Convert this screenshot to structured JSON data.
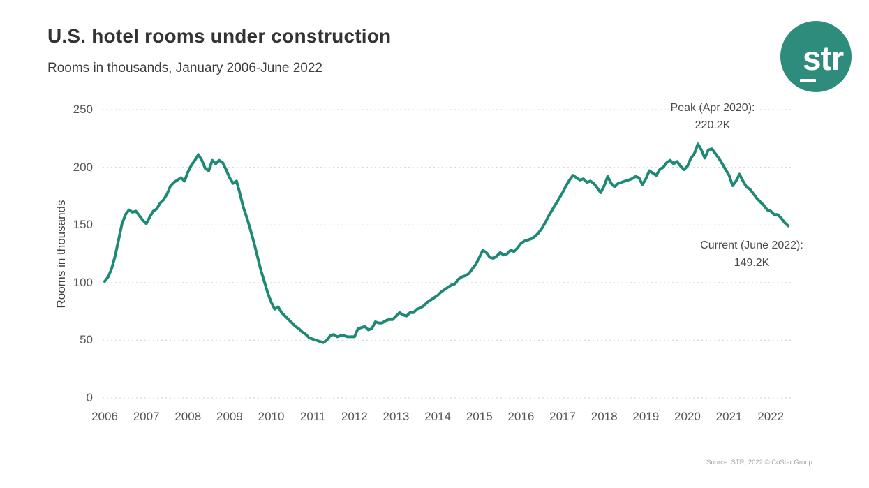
{
  "branding": {
    "logo_text": "str",
    "logo_color": "#2E8C7C"
  },
  "footer": {
    "source": "Source: STR, 2022 © CoStar Group"
  },
  "chart_data": {
    "type": "line",
    "title": "U.S. hotel rooms under construction",
    "subtitle": "Rooms in thousands, January 2006-June 2022",
    "ylabel": "Rooms in thousands",
    "xlabel": "",
    "x_start": "2006-01",
    "x_end": "2022-06",
    "x_frequency": "monthly",
    "x_tick_years": [
      "2006",
      "2007",
      "2008",
      "2009",
      "2010",
      "2011",
      "2012",
      "2013",
      "2014",
      "2015",
      "2016",
      "2017",
      "2018",
      "2019",
      "2020",
      "2021",
      "2022"
    ],
    "y_ticks": [
      0,
      50,
      100,
      150,
      200,
      250
    ],
    "ylim": [
      0,
      250
    ],
    "grid": "horizontal-dashed",
    "legend": "none",
    "line_color": "#1E8A76",
    "grid_color": "#dadada",
    "series": [
      {
        "name": "Rooms under construction (thousands)",
        "monthly_values": [
          101,
          105,
          112,
          123,
          137,
          151,
          159,
          163,
          161,
          162,
          158,
          154,
          151,
          157,
          162,
          164,
          169,
          172,
          177,
          184,
          187,
          189,
          191,
          188,
          196,
          202,
          206,
          211,
          206,
          199,
          197,
          206,
          203,
          206,
          204,
          198,
          191,
          186,
          188,
          177,
          165,
          156,
          146,
          135,
          123,
          111,
          101,
          91,
          83,
          77,
          79,
          74,
          71,
          68,
          65,
          62,
          60,
          57,
          55,
          52,
          51,
          50,
          49,
          48,
          50,
          54,
          55,
          53,
          54,
          54,
          53,
          53,
          53,
          60,
          61,
          62,
          59,
          60,
          66,
          65,
          65,
          67,
          68,
          68,
          71,
          74,
          72,
          71,
          74,
          74,
          77,
          78,
          80,
          83,
          85,
          87,
          89,
          92,
          94,
          96,
          98,
          99,
          103,
          105,
          106,
          108,
          112,
          116,
          122,
          128,
          126,
          122,
          121,
          123,
          126,
          124,
          125,
          128,
          127,
          130,
          134,
          136,
          137,
          138,
          140,
          143,
          147,
          152,
          158,
          163,
          168,
          173,
          178,
          184,
          189,
          193,
          191,
          189,
          190,
          187,
          188,
          186,
          182,
          178,
          184,
          192,
          186,
          183,
          186,
          187,
          188,
          189,
          190,
          192,
          191,
          185,
          190,
          197,
          195,
          193,
          198,
          200,
          204,
          206,
          203,
          205,
          201,
          198,
          201,
          208,
          212,
          220.2,
          215,
          208,
          215,
          216,
          212,
          208,
          203,
          198,
          193,
          184,
          188,
          194,
          188,
          183,
          181,
          177,
          173,
          170,
          167,
          163,
          162,
          159,
          159,
          156,
          152,
          149.2
        ]
      }
    ],
    "annotations": {
      "peak": {
        "label": "Peak (Apr 2020):",
        "value": "220.2K"
      },
      "current": {
        "label": "Current (June 2022):",
        "value": "149.2K"
      }
    }
  }
}
